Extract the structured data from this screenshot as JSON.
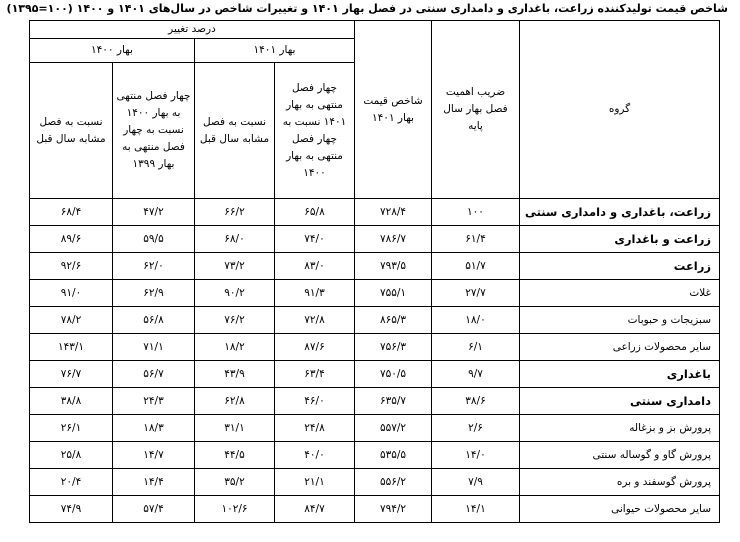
{
  "header": {
    "title": "شاخص قیمت تولیدکننده زراعت، باغداری و دامداری سنتی در فصل بهار ۱۴۰۱ و تغییرات شاخص در سال‌های ۱۴۰۱ و ۱۴۰۰ (۱۰۰=۱۳۹۵)"
  },
  "table": {
    "columns": {
      "group": "گروه",
      "weight": "ضریب اهمیت فصل بهار سال پایه",
      "index": "شاخص قیمت بهار ۱۴۰۱",
      "change": "درصد تغییر",
      "year_1401": "بهار ۱۴۰۱",
      "year_1400": "بهار ۱۴۰۰",
      "four_season_1401": "چهار فصل منتهی به بهار ۱۴۰۱ نسبت به چهار فصل منتهی به بهار ۱۴۰۰",
      "yoy_1401": "نسبت به فصل مشابه سال قبل",
      "four_season_1400": "چهار فصل منتهی به بهار ۱۴۰۰ نسبت به چهار فصل منتهی به بهار ۱۳۹۹",
      "yoy_1400": "نسبت به فصل مشابه سال قبل"
    },
    "rows": [
      [
        "زراعت، باغداری و دامداری سنتی",
        "۱۰۰",
        "۷۲۸/۴",
        "۶۵/۸",
        "۶۶/۲",
        "۴۷/۲",
        "۶۸/۴"
      ],
      [
        "زراعت و باغداری",
        "۶۱/۴",
        "۷۸۶/۷",
        "۷۴/۰",
        "۶۸/۰",
        "۵۹/۵",
        "۸۹/۶"
      ],
      [
        "زراعت",
        "۵۱/۷",
        "۷۹۳/۵",
        "۸۳/۰",
        "۷۳/۲",
        "۶۲/۰",
        "۹۲/۶"
      ],
      [
        "غلات",
        "۲۷/۷",
        "۷۵۵/۱",
        "۹۱/۳",
        "۹۰/۲",
        "۶۲/۹",
        "۹۱/۰"
      ],
      [
        "سبزیجات و حبوبات",
        "۱۸/۰",
        "۸۶۵/۳",
        "۷۲/۸",
        "۷۶/۲",
        "۵۶/۸",
        "۷۸/۲"
      ],
      [
        "سایر محصولات زراعی",
        "۶/۱",
        "۷۵۶/۳",
        "۸۷/۶",
        "۱۸/۲",
        "۷۱/۱",
        "۱۴۳/۱"
      ],
      [
        "باغداری",
        "۹/۷",
        "۷۵۰/۵",
        "۶۳/۴",
        "۴۳/۹",
        "۵۶/۷",
        "۷۶/۷"
      ],
      [
        "دامداری سنتی",
        "۳۸/۶",
        "۶۳۵/۷",
        "۴۶/۰",
        "۶۲/۸",
        "۲۴/۳",
        "۳۸/۸"
      ],
      [
        "پرورش بز و بزغاله",
        "۲/۶",
        "۵۵۷/۲",
        "۲۴/۸",
        "۳۱/۱",
        "۱۸/۳",
        "۲۶/۱"
      ],
      [
        "پرورش گاو و گوساله سنتی",
        "۱۴/۰",
        "۵۳۵/۵",
        "۴۰/۰",
        "۴۴/۵",
        "۱۴/۷",
        "۲۵/۸"
      ],
      [
        "پرورش گوسفند و بره",
        "۷/۹",
        "۵۵۶/۲",
        "۲۱/۱",
        "۳۵/۲",
        "۱۴/۴",
        "۲۰/۴"
      ],
      [
        "سایر محصولات حیوانی",
        "۱۴/۱",
        "۷۹۴/۲",
        "۸۴/۷",
        "۱۰۲/۶",
        "۵۷/۴",
        "۷۴/۹"
      ]
    ]
  }
}
